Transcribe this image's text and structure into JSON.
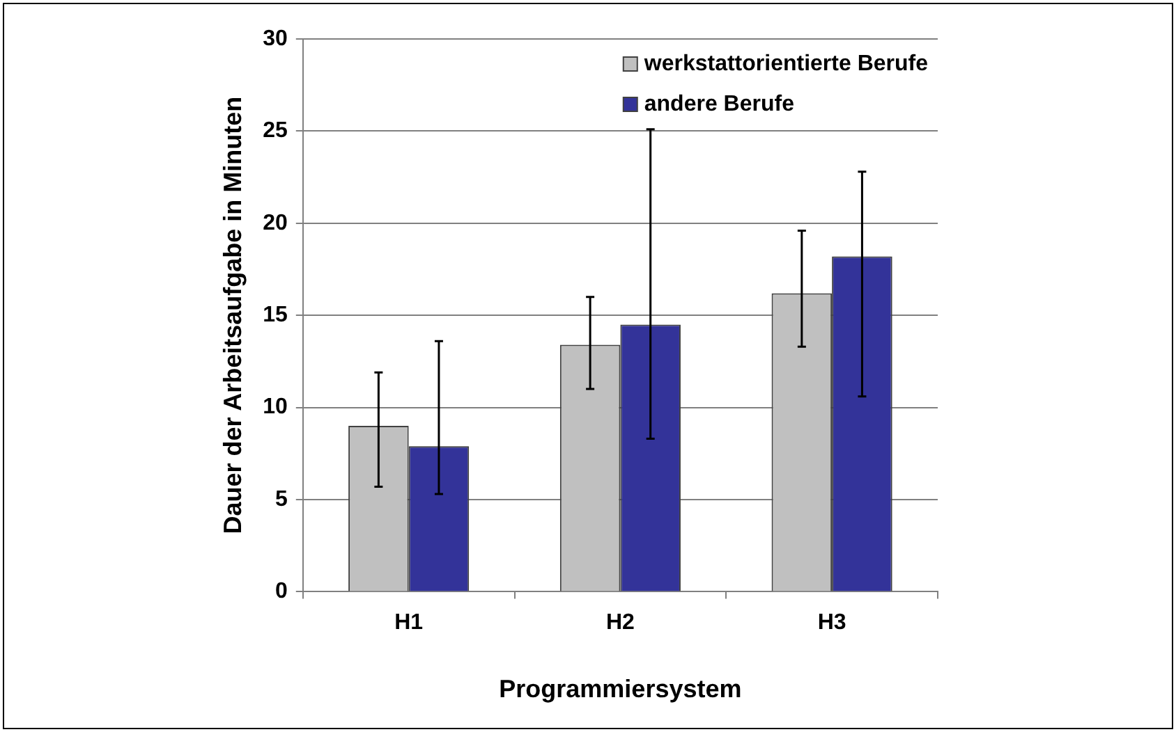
{
  "chart_data": {
    "type": "bar",
    "xlabel": "Programmiersystem",
    "ylabel": "Dauer der Arbeitsaufgabe in Minuten",
    "categories": [
      "H1",
      "H2",
      "H3"
    ],
    "series": [
      {
        "name": "werkstattorientierte Berufe",
        "color": "#c0c0c0",
        "values": [
          9.0,
          13.4,
          16.2
        ],
        "errors": [
          [
            5.7,
            11.9
          ],
          [
            11.0,
            16.0
          ],
          [
            13.3,
            19.6
          ]
        ]
      },
      {
        "name": "andere Berufe",
        "color": "#333399",
        "values": [
          7.9,
          14.5,
          18.2
        ],
        "errors": [
          [
            5.3,
            13.6
          ],
          [
            8.3,
            25.1
          ],
          [
            10.6,
            22.8
          ]
        ]
      }
    ],
    "ylim": [
      0,
      30
    ],
    "yticks": [
      0,
      5,
      10,
      15,
      20,
      25,
      30
    ],
    "grid": "y",
    "legend": "top right"
  }
}
